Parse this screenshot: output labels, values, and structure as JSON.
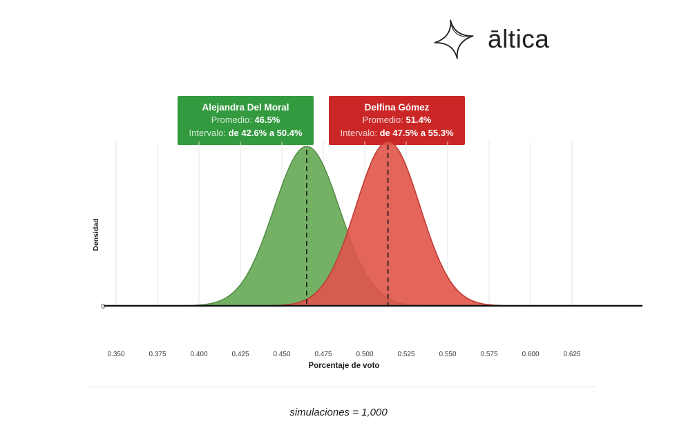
{
  "brand": {
    "name": "āltica",
    "icon": "sparkle-star-icon"
  },
  "legend": [
    {
      "name": "Alejandra Del Moral",
      "promedio_label": "Promedio:",
      "promedio_value": "46.5%",
      "intervalo_label": "Intervalo:",
      "intervalo_value": "de 42.6% a 50.4%",
      "color": "#339a3f"
    },
    {
      "name": "Delfina Gómez",
      "promedio_label": "Promedio:",
      "promedio_value": "51.4%",
      "intervalo_label": "Intervalo:",
      "intervalo_value": "de 47.5% a 55.3%",
      "color": "#cb2727"
    }
  ],
  "footer_note": "simulaciones = 1,000",
  "chart_data": {
    "type": "area",
    "title": "",
    "xlabel": "Porcentaje de voto",
    "ylabel": "Densidad",
    "xlim": [
      0.343,
      0.645
    ],
    "x_ticks": [
      0.35,
      0.375,
      0.4,
      0.425,
      0.45,
      0.475,
      0.5,
      0.525,
      0.55,
      0.575,
      0.6,
      0.625
    ],
    "x_tick_labels": [
      "0.350",
      "0.375",
      "0.400",
      "0.425",
      "0.450",
      "0.475",
      "0.500",
      "0.525",
      "0.550",
      "0.575",
      "0.600",
      "0.625"
    ],
    "y_origin_label": "0",
    "grid": true,
    "legend_position": "top",
    "mean_line_style": "dashed",
    "simulations": 1000,
    "series": [
      {
        "name": "Alejandra Del Moral",
        "distribution": "normal",
        "mean": 0.465,
        "sd": 0.0199,
        "interval": [
          0.426,
          0.504
        ],
        "fill": "#75b164",
        "stroke": "#4e8c42",
        "opacity": 1
      },
      {
        "name": "Delfina Gómez",
        "distribution": "normal",
        "mean": 0.514,
        "sd": 0.0193,
        "interval": [
          0.475,
          0.553
        ],
        "fill": "#e0544a",
        "stroke": "#bd382e",
        "opacity": 0.9
      }
    ]
  }
}
